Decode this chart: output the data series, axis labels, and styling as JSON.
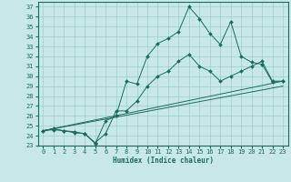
{
  "title": "",
  "xlabel": "Humidex (Indice chaleur)",
  "xlim": [
    -0.5,
    23.5
  ],
  "ylim": [
    23,
    37.5
  ],
  "xticks": [
    0,
    1,
    2,
    3,
    4,
    5,
    6,
    7,
    8,
    9,
    10,
    11,
    12,
    13,
    14,
    15,
    16,
    17,
    18,
    19,
    20,
    21,
    22,
    23
  ],
  "yticks": [
    23,
    24,
    25,
    26,
    27,
    28,
    29,
    30,
    31,
    32,
    33,
    34,
    35,
    36,
    37
  ],
  "bg_color": "#c8e8e8",
  "line_color": "#1a6b5a",
  "grid_color": "#9ecece",
  "lines": [
    {
      "x": [
        0,
        1,
        2,
        3,
        4,
        5,
        6,
        7,
        8,
        9,
        10,
        11,
        12,
        13,
        14,
        15,
        16,
        17,
        18,
        19,
        20,
        21,
        22,
        23
      ],
      "y": [
        24.5,
        24.7,
        24.5,
        24.4,
        24.2,
        23.2,
        25.5,
        26.0,
        29.5,
        29.2,
        32.0,
        33.3,
        33.8,
        34.5,
        37.0,
        35.8,
        34.3,
        33.2,
        35.5,
        32.0,
        31.4,
        31.2,
        29.4,
        29.5
      ],
      "marker": true
    },
    {
      "x": [
        0,
        1,
        2,
        3,
        4,
        5,
        6,
        7,
        8,
        9,
        10,
        11,
        12,
        13,
        14,
        15,
        16,
        17,
        18,
        19,
        20,
        21,
        22,
        23
      ],
      "y": [
        24.5,
        24.6,
        24.5,
        24.3,
        24.2,
        23.3,
        24.2,
        26.5,
        26.5,
        27.5,
        29.0,
        30.0,
        30.5,
        31.5,
        32.2,
        31.0,
        30.5,
        29.5,
        30.0,
        30.5,
        31.0,
        31.5,
        29.5,
        29.5
      ],
      "marker": true
    },
    {
      "x": [
        0,
        23
      ],
      "y": [
        24.5,
        29.5
      ],
      "marker": false
    },
    {
      "x": [
        0,
        23
      ],
      "y": [
        24.5,
        29.0
      ],
      "marker": false
    }
  ],
  "markersize": 2.0,
  "linewidth": 0.7,
  "tick_fontsize": 5,
  "xlabel_fontsize": 5.5
}
